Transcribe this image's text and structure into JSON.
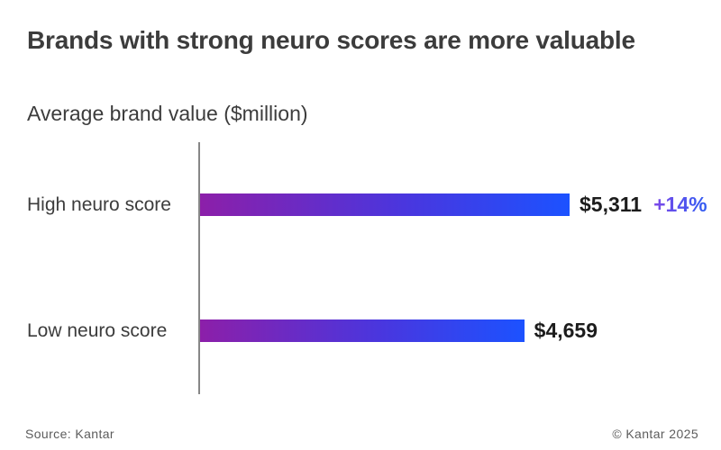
{
  "page": {
    "title": "Brands with strong neuro scores are more valuable",
    "subtitle": "Average brand value ($million)"
  },
  "chart_data": {
    "type": "bar",
    "orientation": "horizontal",
    "title": "Brands with strong neuro scores are more valuable",
    "subtitle": "Average brand value ($million)",
    "categories": [
      "High neuro score",
      "Low neuro score"
    ],
    "values": [
      5311,
      4659
    ],
    "value_labels": [
      "$5,311",
      "$4,659"
    ],
    "annotations": [
      {
        "target": "High neuro score",
        "text": "+14%"
      }
    ],
    "xlim": [
      0,
      5311
    ],
    "grid": false,
    "legend": false
  },
  "rows": [
    {
      "label": "High neuro score",
      "value_label": "$5,311",
      "delta": "+14%"
    },
    {
      "label": "Low neuro score",
      "value_label": "$4,659",
      "delta": ""
    }
  ],
  "colors": {
    "bar_gradient_start": "#8C1FA9",
    "bar_gradient_end": "#1C52FF",
    "delta_gradient_start": "#7E49E8",
    "delta_gradient_end": "#2E5CF2",
    "heading_text": "#3C3C3C",
    "value_text": "#1C1C1C",
    "axis_line": "#878787",
    "footer_text": "#5C5C5C"
  },
  "footer": {
    "source": "Source: Kantar",
    "copyright": "© Kantar 2025"
  }
}
